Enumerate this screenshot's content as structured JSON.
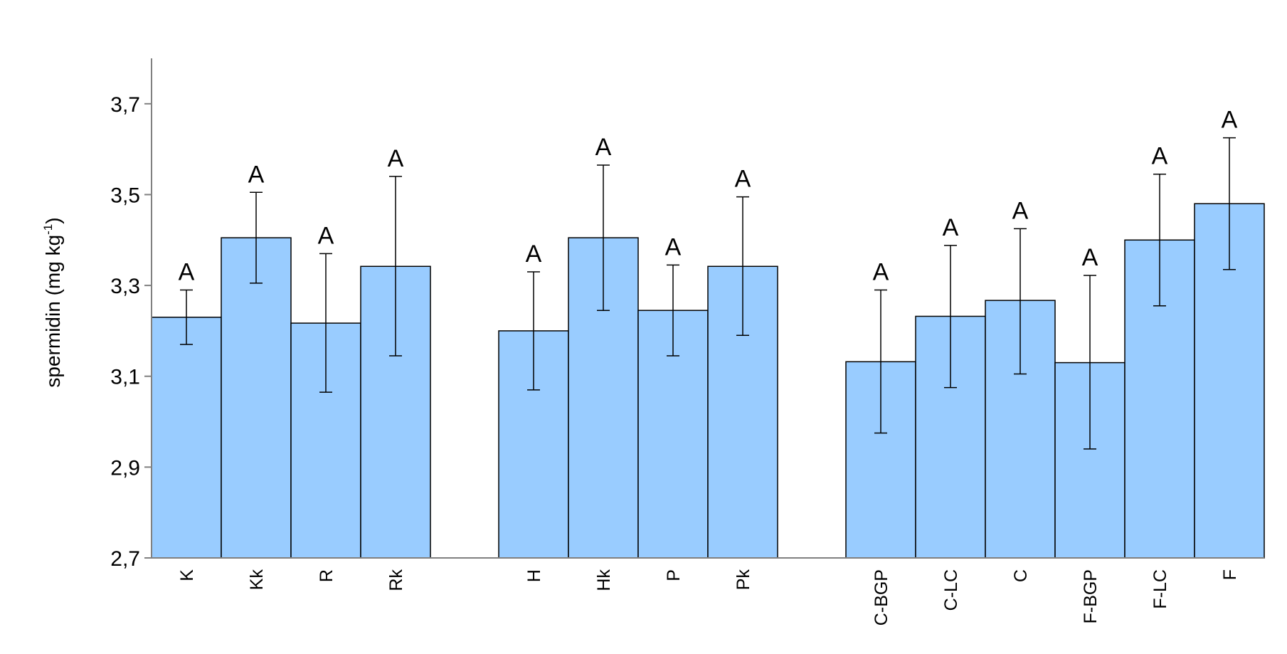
{
  "chart_data": {
    "type": "bar",
    "ylabel": "spermidin (mg kg",
    "ylabel_sup": "-1",
    "ylabel_end": ")",
    "ylim": [
      2.7,
      3.8
    ],
    "yticks": [
      {
        "value": 2.7,
        "label": "2,7"
      },
      {
        "value": 2.9,
        "label": "2,9"
      },
      {
        "value": 3.1,
        "label": "3,1"
      },
      {
        "value": 3.3,
        "label": "3,3"
      },
      {
        "value": 3.5,
        "label": "3,5"
      },
      {
        "value": 3.7,
        "label": "3,7"
      }
    ],
    "grid": false,
    "bar_color": "#99ccff",
    "groups": [
      {
        "categories": [
          "K",
          "Kk",
          "R",
          "Rk"
        ],
        "values": [
          3.23,
          3.405,
          3.217,
          3.342
        ],
        "err_low": [
          3.17,
          3.305,
          3.065,
          3.145
        ],
        "err_high": [
          3.29,
          3.505,
          3.37,
          3.54
        ],
        "significance": [
          "A",
          "A",
          "A",
          "A"
        ]
      },
      {
        "categories": [
          "H",
          "Hk",
          "P",
          "Pk"
        ],
        "values": [
          3.2,
          3.405,
          3.245,
          3.342
        ],
        "err_low": [
          3.07,
          3.245,
          3.145,
          3.19
        ],
        "err_high": [
          3.33,
          3.565,
          3.345,
          3.495
        ],
        "significance": [
          "A",
          "A",
          "A",
          "A"
        ]
      },
      {
        "categories": [
          "C-BGP",
          "C-LC",
          "C",
          "F-BGP",
          "F-LC",
          "F"
        ],
        "values": [
          3.132,
          3.232,
          3.267,
          3.13,
          3.4,
          3.48
        ],
        "err_low": [
          2.975,
          3.075,
          3.105,
          2.94,
          3.255,
          3.335
        ],
        "err_high": [
          3.29,
          3.388,
          3.425,
          3.322,
          3.545,
          3.625
        ],
        "significance": [
          "A",
          "A",
          "A",
          "A",
          "A",
          "A"
        ]
      }
    ]
  }
}
